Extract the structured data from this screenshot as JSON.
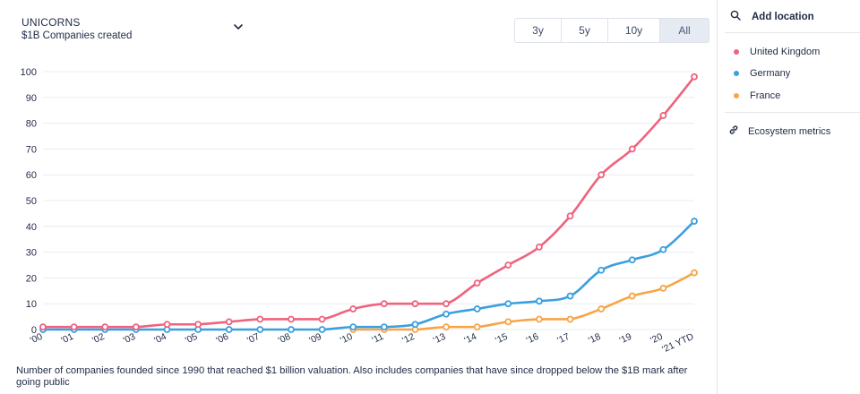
{
  "header": {
    "title": "UNICORNS",
    "subtitle": "$1B Companies created"
  },
  "time_range": {
    "options": [
      "3y",
      "5y",
      "10y",
      "All"
    ],
    "selected": "All"
  },
  "footnote": "Number of companies founded since 1990 that reached $1 billion valuation. Also includes companies that have since dropped below the $1B mark after going public",
  "sidebar": {
    "add_location_label": "Add location",
    "ecosystem_metrics_label": "Ecosystem metrics"
  },
  "colors": {
    "United Kingdom": "#f0627d",
    "Germany": "#3a9fe0",
    "France": "#f8a446",
    "axis_text": "#1f2a44",
    "grid": "#e9ecf1"
  },
  "chart_data": {
    "type": "line",
    "title": "UNICORNS",
    "subtitle": "$1B Companies created",
    "categories": [
      "'00",
      "'01",
      "'02",
      "'03",
      "'04",
      "'05",
      "'06",
      "'07",
      "'08",
      "'09",
      "'10",
      "'11",
      "'12",
      "'13",
      "'14",
      "'15",
      "'16",
      "'17",
      "'18",
      "'19",
      "'20",
      "'21 YTD"
    ],
    "ylim": [
      0,
      100
    ],
    "yticks": [
      0,
      10,
      20,
      30,
      40,
      50,
      60,
      70,
      80,
      90,
      100
    ],
    "grid": true,
    "legend_placement": "right sidebar",
    "series": [
      {
        "name": "United Kingdom",
        "values": [
          1,
          1,
          1,
          1,
          2,
          2,
          3,
          4,
          4,
          4,
          8,
          10,
          10,
          10,
          18,
          25,
          32,
          44,
          60,
          70,
          83,
          98
        ]
      },
      {
        "name": "Germany",
        "values": [
          0,
          0,
          0,
          0,
          0,
          0,
          0,
          0,
          0,
          0,
          1,
          1,
          2,
          6,
          8,
          10,
          11,
          13,
          23,
          27,
          31,
          42
        ]
      },
      {
        "name": "France",
        "values": [
          null,
          null,
          null,
          null,
          null,
          null,
          null,
          null,
          null,
          null,
          0,
          0,
          0,
          1,
          1,
          3,
          4,
          4,
          8,
          13,
          16,
          22
        ]
      }
    ]
  }
}
